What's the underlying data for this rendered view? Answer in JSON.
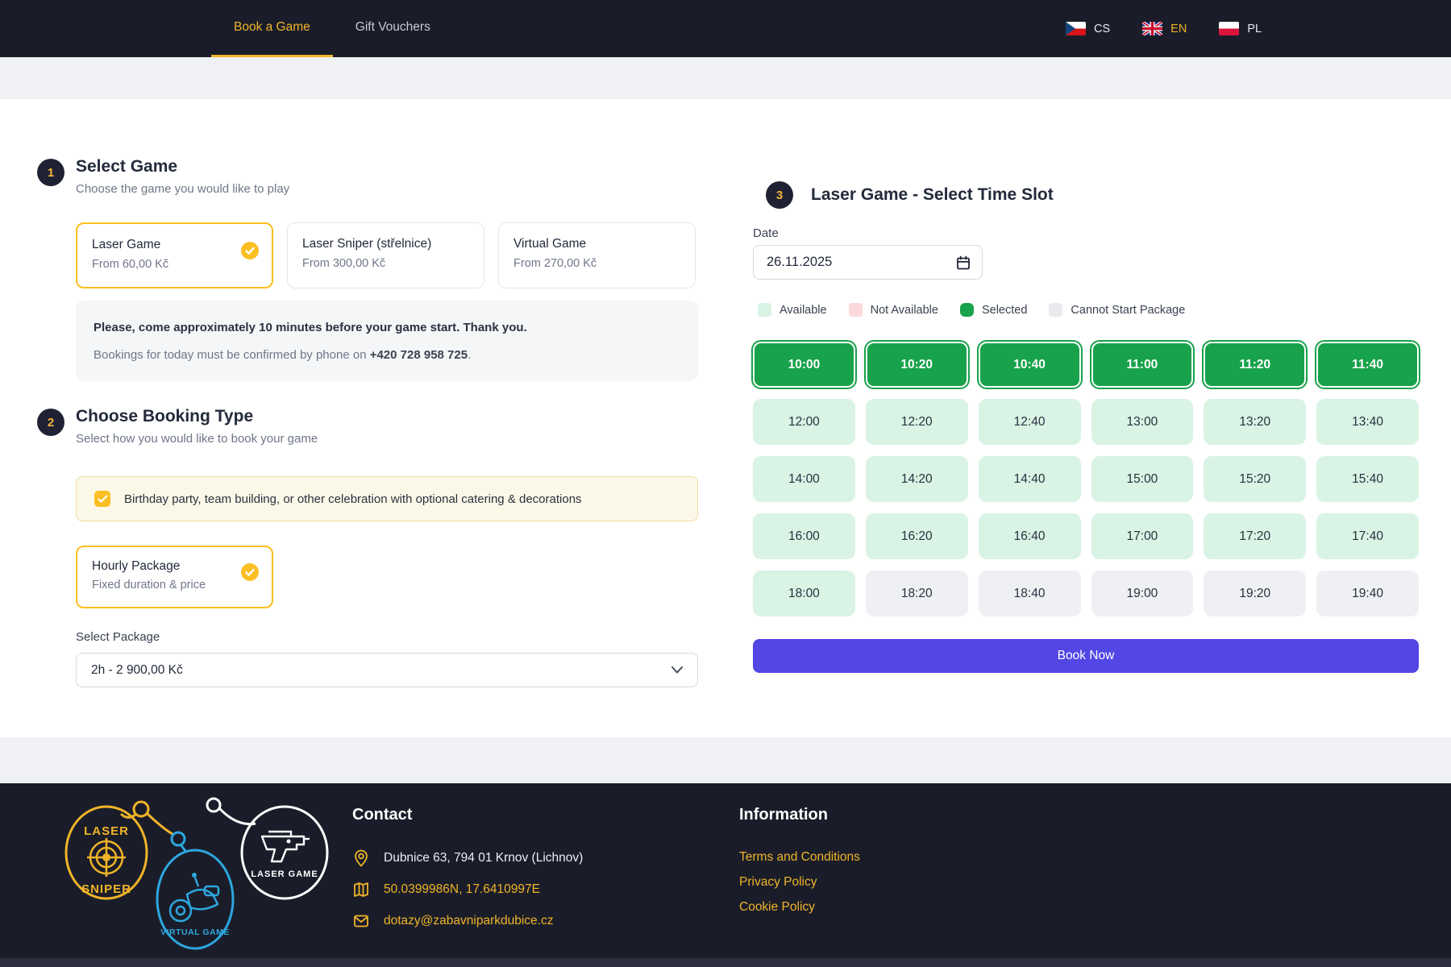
{
  "nav": {
    "tabs": [
      {
        "label": "Book a Game"
      },
      {
        "label": "Gift Vouchers"
      }
    ],
    "languages": [
      {
        "code": "CS"
      },
      {
        "code": "EN"
      },
      {
        "code": "PL"
      }
    ]
  },
  "step1": {
    "number": "1",
    "title": "Select Game",
    "subtitle": "Choose the game you would like to play",
    "games": [
      {
        "name": "Laser Game",
        "price": "From 60,00 Kč",
        "selected": true
      },
      {
        "name": "Laser Sniper (střelnice)",
        "price": "From 300,00 Kč",
        "selected": false
      },
      {
        "name": "Virtual Game",
        "price": "From 270,00 Kč",
        "selected": false
      }
    ],
    "notice": {
      "line1": "Please, come approximately 10 minutes before your game start. Thank you.",
      "line2_prefix": "Bookings for today must be confirmed by phone on ",
      "phone": "+420 728 958 725",
      "line2_suffix": "."
    }
  },
  "step2": {
    "number": "2",
    "title": "Choose Booking Type",
    "subtitle": "Select how you would like to book your game",
    "celebration_label": "Birthday party, team building, or other celebration with optional catering & decorations",
    "celebration_checked": true,
    "package_card": {
      "name": "Hourly Package",
      "desc": "Fixed duration & price",
      "selected": true
    },
    "select_label": "Select Package",
    "selected_package": "2h - 2 900,00 Kč"
  },
  "step3": {
    "number": "3",
    "title": "Laser Game - Select Time Slot",
    "date_label": "Date",
    "date_value": "26.11.2025",
    "legend": [
      {
        "label": "Available"
      },
      {
        "label": "Not Available"
      },
      {
        "label": "Selected"
      },
      {
        "label": "Cannot Start Package"
      }
    ],
    "slots": [
      {
        "time": "10:00",
        "state": "selected"
      },
      {
        "time": "10:20",
        "state": "selected"
      },
      {
        "time": "10:40",
        "state": "selected"
      },
      {
        "time": "11:00",
        "state": "selected"
      },
      {
        "time": "11:20",
        "state": "selected"
      },
      {
        "time": "11:40",
        "state": "selected"
      },
      {
        "time": "12:00",
        "state": "available"
      },
      {
        "time": "12:20",
        "state": "available"
      },
      {
        "time": "12:40",
        "state": "available"
      },
      {
        "time": "13:00",
        "state": "available"
      },
      {
        "time": "13:20",
        "state": "available"
      },
      {
        "time": "13:40",
        "state": "available"
      },
      {
        "time": "14:00",
        "state": "available"
      },
      {
        "time": "14:20",
        "state": "available"
      },
      {
        "time": "14:40",
        "state": "available"
      },
      {
        "time": "15:00",
        "state": "available"
      },
      {
        "time": "15:20",
        "state": "available"
      },
      {
        "time": "15:40",
        "state": "available"
      },
      {
        "time": "16:00",
        "state": "available"
      },
      {
        "time": "16:20",
        "state": "available"
      },
      {
        "time": "16:40",
        "state": "available"
      },
      {
        "time": "17:00",
        "state": "available"
      },
      {
        "time": "17:20",
        "state": "available"
      },
      {
        "time": "17:40",
        "state": "available"
      },
      {
        "time": "18:00",
        "state": "available"
      },
      {
        "time": "18:20",
        "state": "cannot"
      },
      {
        "time": "18:40",
        "state": "cannot"
      },
      {
        "time": "19:00",
        "state": "cannot"
      },
      {
        "time": "19:20",
        "state": "cannot"
      },
      {
        "time": "19:40",
        "state": "cannot"
      }
    ],
    "book_now": "Book Now"
  },
  "footer": {
    "logos": [
      {
        "line1": "LASER",
        "line2": "SNIPER"
      },
      {
        "label": "VIRTUAL GAME"
      },
      {
        "label": "LASER GAME"
      }
    ],
    "contact": {
      "heading": "Contact",
      "address": "Dubnice 63, 794 01 Krnov (Lichnov)",
      "coordinates": "50.0399986N, 17.6410997E",
      "email": "dotazy@zabavniparkdubice.cz"
    },
    "information": {
      "heading": "Information",
      "links": [
        {
          "label": "Terms and Conditions"
        },
        {
          "label": "Privacy Policy"
        },
        {
          "label": "Cookie Policy"
        }
      ]
    }
  },
  "colors": {
    "navbar_dark": "#1a1d29",
    "accent_yellow": "#f0b429",
    "border_yellow": "#fcbf1e",
    "selected_green": "#18a24b",
    "available_green": "#d9f3e4",
    "not_available_pink": "#fbd9dc",
    "cannot_start_gray": "#eef0f3",
    "book_now_purple": "#5246e4",
    "virtual_game_blue": "#2da7e0"
  }
}
